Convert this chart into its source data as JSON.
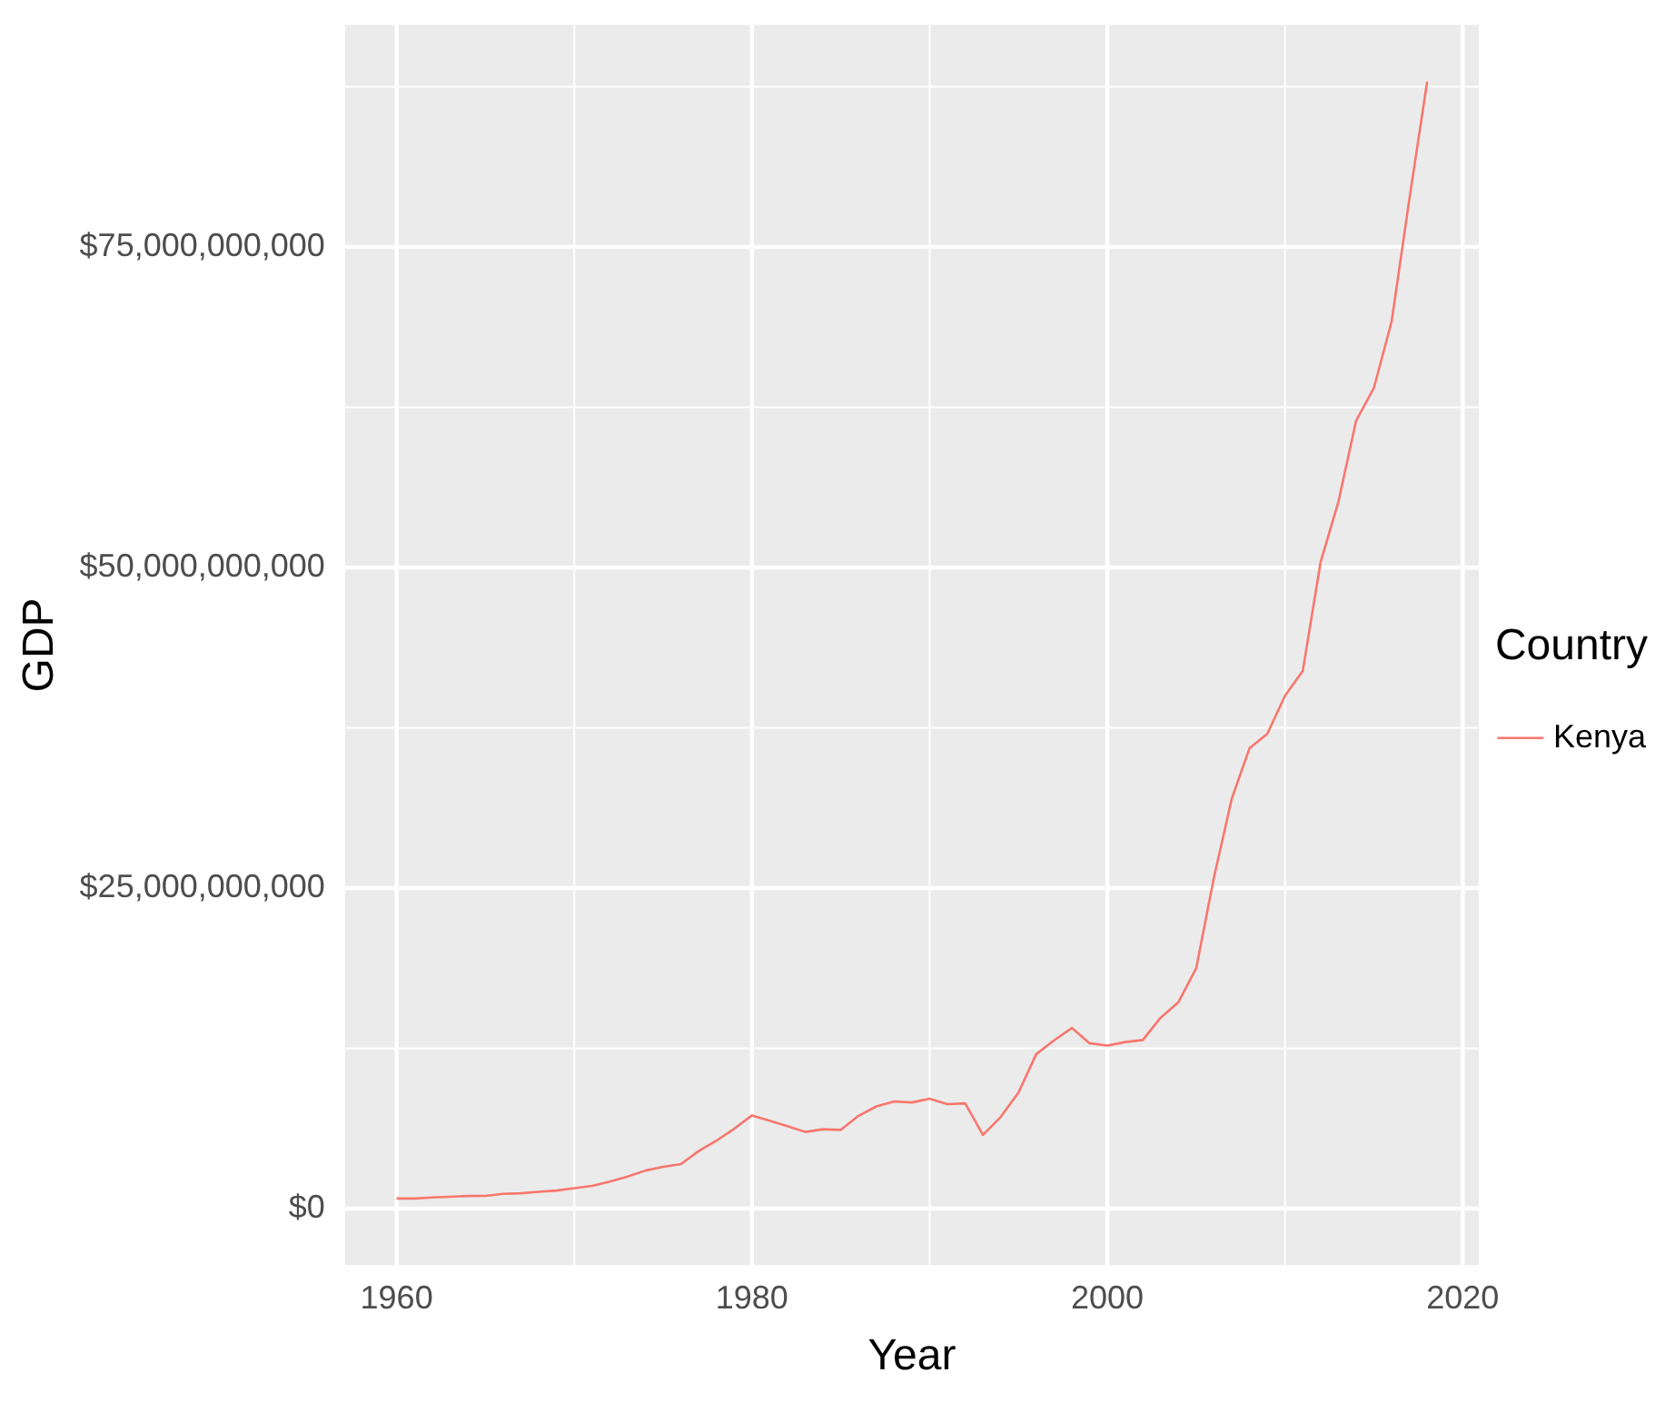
{
  "chart_data": {
    "type": "line",
    "xlabel": "Year",
    "ylabel": "GDP",
    "legend_title": "Country",
    "legend": "right",
    "grid": true,
    "x": [
      1960,
      1961,
      1962,
      1963,
      1964,
      1965,
      1966,
      1967,
      1968,
      1969,
      1970,
      1971,
      1972,
      1973,
      1974,
      1975,
      1976,
      1977,
      1978,
      1979,
      1980,
      1981,
      1982,
      1983,
      1984,
      1985,
      1986,
      1987,
      1988,
      1989,
      1990,
      1991,
      1992,
      1993,
      1994,
      1995,
      1996,
      1997,
      1998,
      1999,
      2000,
      2001,
      2002,
      2003,
      2004,
      2005,
      2006,
      2007,
      2008,
      2009,
      2010,
      2011,
      2012,
      2013,
      2014,
      2015,
      2016,
      2017,
      2018
    ],
    "series": [
      {
        "name": "Kenya",
        "color": "#f8766d",
        "values": [
          790000000,
          790000000,
          870000000,
          930000000,
          990000000,
          1000000000,
          1150000000,
          1200000000,
          1320000000,
          1410000000,
          1600000000,
          1780000000,
          2110000000,
          2500000000,
          2970000000,
          3260000000,
          3470000000,
          4490000000,
          5300000000,
          6230000000,
          7270000000,
          6850000000,
          6430000000,
          5980000000,
          6190000000,
          6140000000,
          7240000000,
          7970000000,
          8360000000,
          8280000000,
          8570000000,
          8150000000,
          8210000000,
          5750000000,
          7150000000,
          9050000000,
          12050000000,
          13120000000,
          14090000000,
          12900000000,
          12710000000,
          12990000000,
          13150000000,
          14900000000,
          16100000000,
          18740000000,
          25830000000,
          31960000000,
          35900000000,
          37020000000,
          40000000000,
          41950000000,
          50410000000,
          55100000000,
          61450000000,
          64000000000,
          69190000000,
          78760000000,
          87900000000
        ]
      }
    ],
    "xlim": [
      1957.1,
      2020.9
    ],
    "xticks": [
      1960,
      1980,
      2000,
      2020
    ],
    "ylim": [
      -4400000000,
      92300000000
    ],
    "yticks": [
      {
        "value": 0,
        "label": "$0"
      },
      {
        "value": 25000000000,
        "label": "$25,000,000,000"
      },
      {
        "value": 50000000000,
        "label": "$50,000,000,000"
      },
      {
        "value": 75000000000,
        "label": "$75,000,000,000"
      }
    ]
  }
}
